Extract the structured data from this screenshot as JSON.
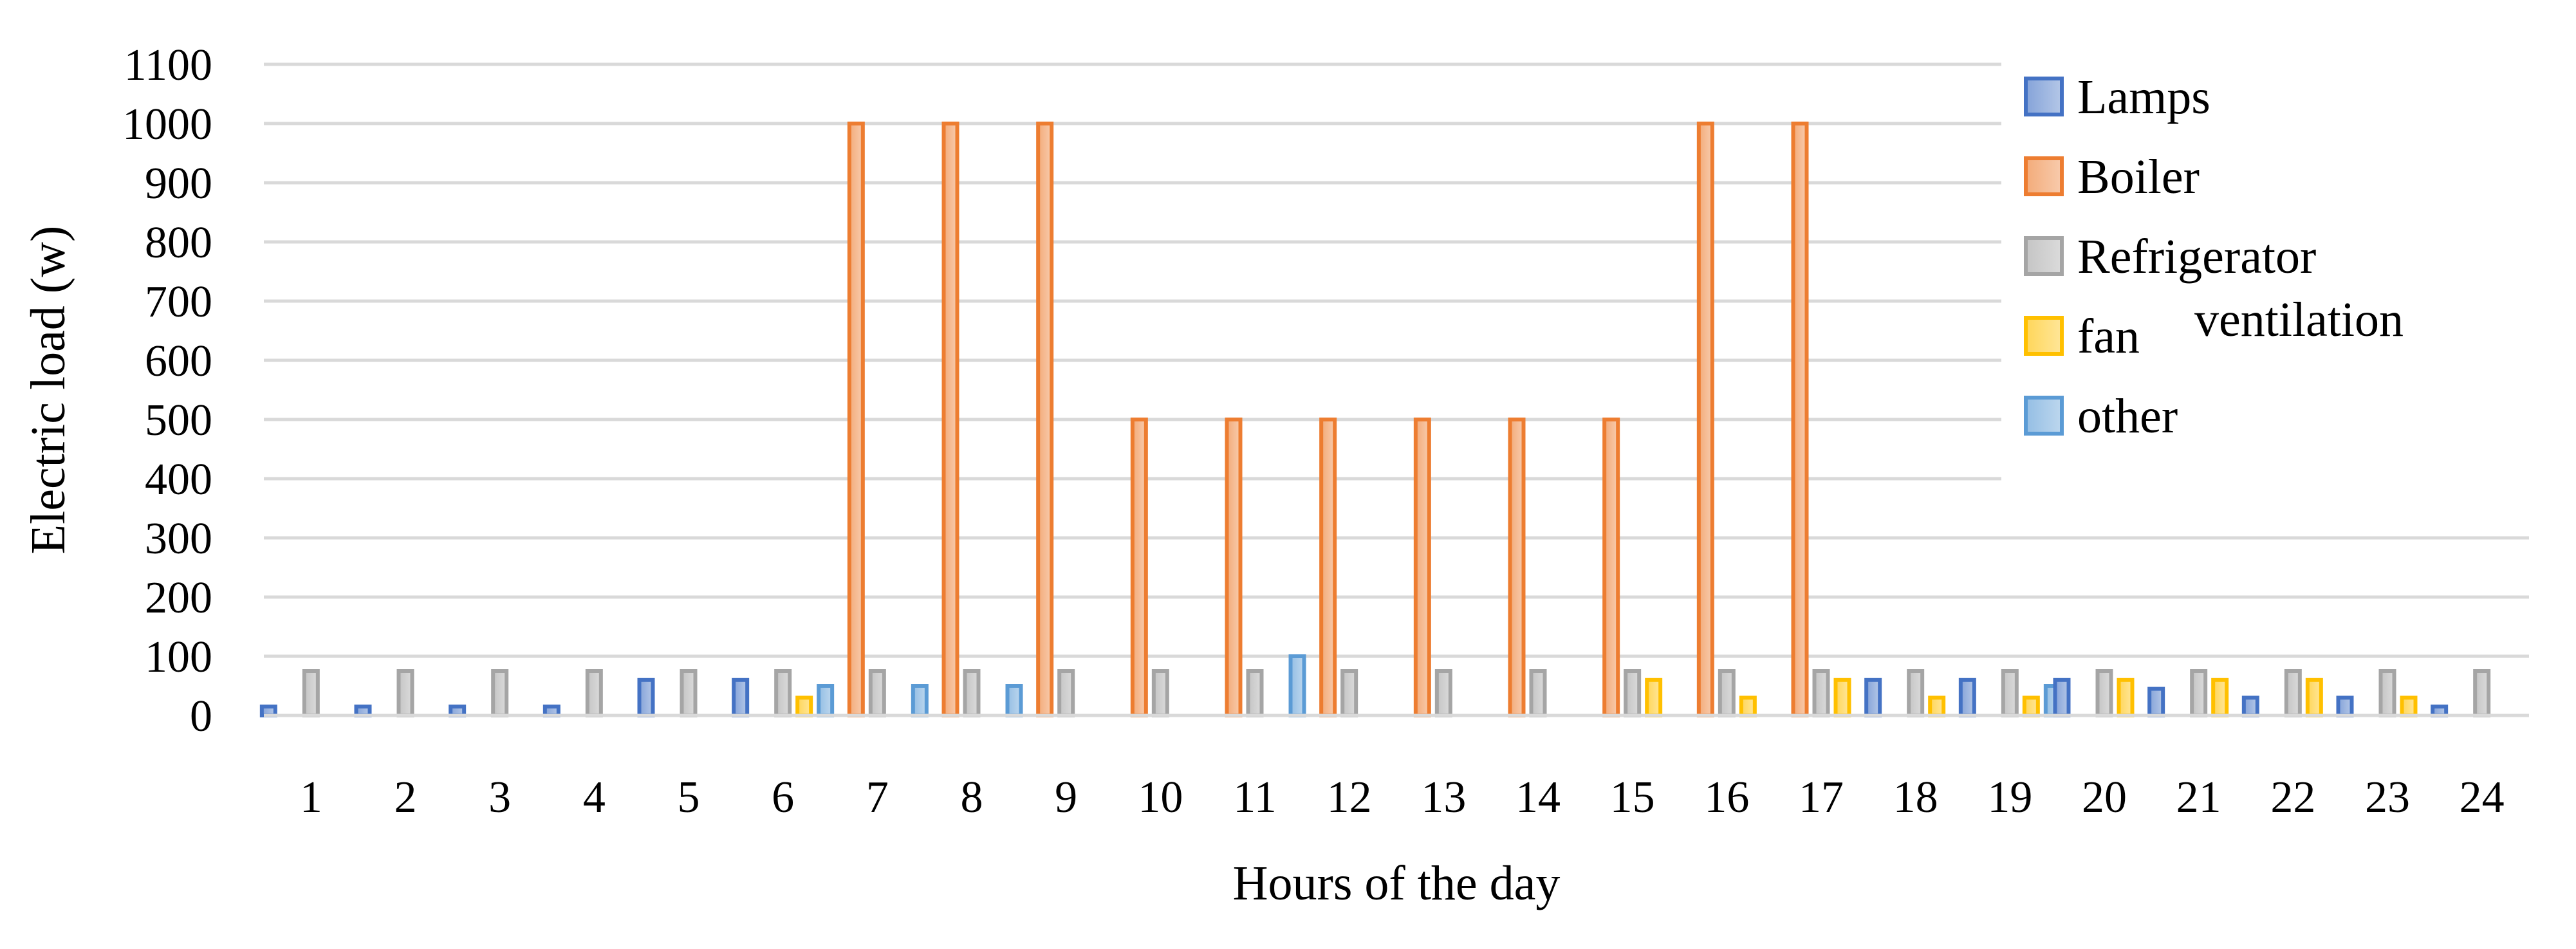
{
  "chart_data": {
    "type": "bar",
    "title": "",
    "xlabel": "Hours of the day",
    "ylabel": "Electric load (w)",
    "ylim": [
      0,
      1100
    ],
    "yticks": [
      0,
      100,
      200,
      300,
      400,
      500,
      600,
      700,
      800,
      900,
      1000,
      1100
    ],
    "grid": "horizontal",
    "legend_position": "top-right",
    "categories": [
      "1",
      "2",
      "3",
      "4",
      "5",
      "6",
      "7",
      "8",
      "9",
      "10",
      "11",
      "12",
      "13",
      "14",
      "15",
      "16",
      "17",
      "18",
      "19",
      "20",
      "21",
      "22",
      "23",
      "24"
    ],
    "series": [
      {
        "name": "Lamps",
        "color": "#4472C4",
        "values": [
          15,
          15,
          15,
          15,
          60,
          60,
          0,
          0,
          0,
          0,
          0,
          0,
          0,
          0,
          0,
          0,
          0,
          60,
          60,
          60,
          45,
          30,
          30,
          15
        ]
      },
      {
        "name": "Boiler",
        "color": "#ED7D31",
        "values": [
          0,
          0,
          0,
          0,
          0,
          0,
          1000,
          1000,
          1000,
          500,
          500,
          500,
          500,
          500,
          500,
          1000,
          1000,
          0,
          0,
          0,
          0,
          0,
          0,
          0
        ]
      },
      {
        "name": "Refrigerator",
        "color": "#A5A5A5",
        "values": [
          75,
          75,
          75,
          75,
          75,
          75,
          75,
          75,
          75,
          75,
          75,
          75,
          75,
          75,
          75,
          75,
          75,
          75,
          75,
          75,
          75,
          75,
          75,
          75
        ]
      },
      {
        "name": "fan",
        "color": "#FFC000",
        "values": [
          0,
          0,
          0,
          0,
          0,
          30,
          0,
          0,
          0,
          0,
          0,
          0,
          0,
          0,
          60,
          30,
          60,
          30,
          30,
          60,
          60,
          60,
          30,
          0
        ]
      },
      {
        "name": "other",
        "color": "#5B9BD5",
        "values": [
          0,
          0,
          0,
          0,
          0,
          50,
          50,
          50,
          0,
          0,
          100,
          0,
          0,
          0,
          0,
          0,
          0,
          0,
          50,
          0,
          0,
          0,
          0,
          0
        ]
      }
    ],
    "legend_extra_text": "ventilation"
  }
}
